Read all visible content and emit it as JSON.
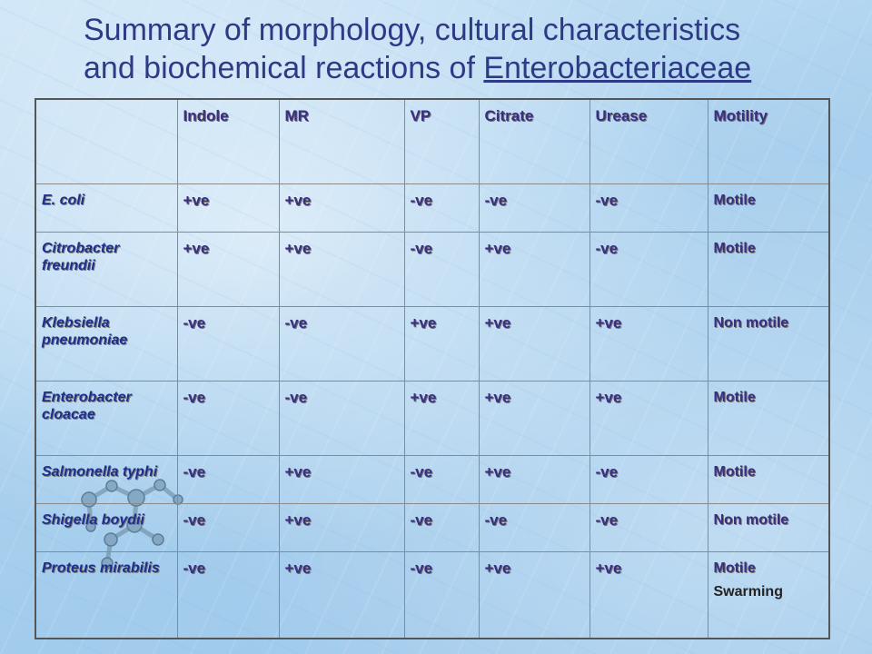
{
  "slide": {
    "title_line1": "Summary of  morphology, cultural characteristics",
    "title_line2_prefix": "and biochemical reactions of ",
    "title_line2_underlined": "Enterobacteriaceae"
  },
  "table": {
    "headers": [
      "",
      "Indole",
      "MR",
      "VP",
      "Citrate",
      "Urease",
      "Motility"
    ],
    "rows": [
      {
        "organism": "E. coli",
        "indole": "+ve",
        "mr": "+ve",
        "vp": "-ve",
        "citrate": "-ve",
        "urease": "-ve",
        "motility": "Motile",
        "extra": ""
      },
      {
        "organism": "Citrobacter freundii",
        "indole": "+ve",
        "mr": "+ve",
        "vp": "-ve",
        "citrate": "+ve",
        "urease": "-ve",
        "motility": "Motile",
        "extra": ""
      },
      {
        "organism": "Klebsiella pneumoniae",
        "indole": "-ve",
        "mr": "-ve",
        "vp": "+ve",
        "citrate": "+ve",
        "urease": "+ve",
        "motility": "Non motile",
        "extra": ""
      },
      {
        "organism": "Enterobacter cloacae",
        "indole": "-ve",
        "mr": "-ve",
        "vp": "+ve",
        "citrate": "+ve",
        "urease": "+ve",
        "motility": "Motile",
        "extra": ""
      },
      {
        "organism": "Salmonella typhi",
        "indole": "-ve",
        "mr": "+ve",
        "vp": "-ve",
        "citrate": "+ve",
        "urease": "-ve",
        "motility": "Motile",
        "extra": ""
      },
      {
        "organism": "Shigella boydii",
        "indole": "-ve",
        "mr": "+ve",
        "vp": "-ve",
        "citrate": "-ve",
        "urease": "-ve",
        "motility": "Non motile",
        "extra": ""
      },
      {
        "organism": "Proteus mirabilis",
        "indole": "-ve",
        "mr": "+ve",
        "vp": "-ve",
        "citrate": "+ve",
        "urease": "+ve",
        "motility": "Motile",
        "extra": "Swarming"
      }
    ]
  },
  "colors": {
    "title": "#2f3a86",
    "cell_text": "#3a2f80",
    "organism_text": "#1e2f8c",
    "background": "#a9d0ee"
  }
}
